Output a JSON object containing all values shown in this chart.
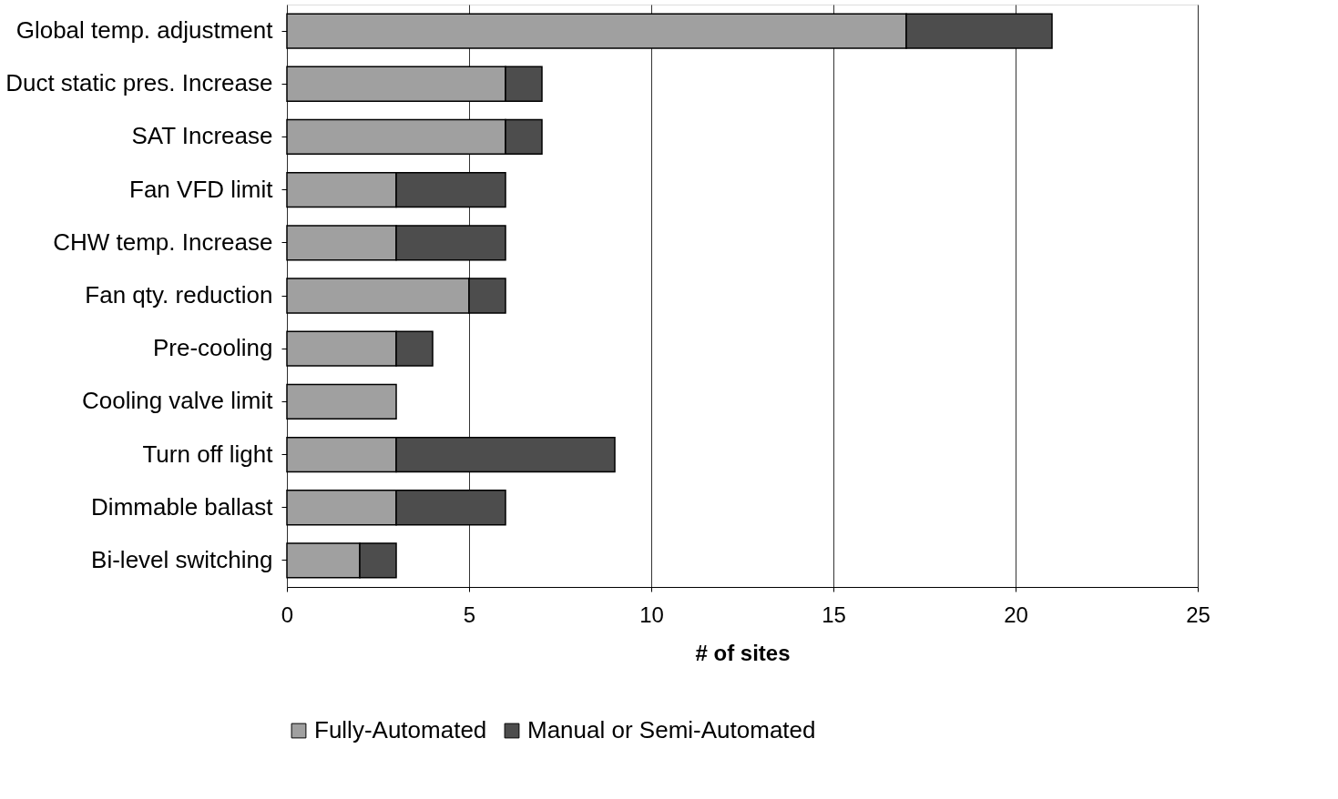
{
  "chart_data": {
    "type": "bar",
    "orientation": "horizontal",
    "stacked": true,
    "xlabel": "# of sites",
    "categories": [
      "Global temp. adjustment",
      "Duct static pres. Increase",
      "SAT Increase",
      "Fan VFD limit",
      "CHW temp. Increase",
      "Fan qty. reduction",
      "Pre-cooling",
      "Cooling valve limit",
      "Turn off light",
      "Dimmable ballast",
      "Bi-level switching"
    ],
    "series": [
      {
        "name": "Fully-Automated",
        "color": "#a0a0a0",
        "values": [
          17,
          6,
          6,
          3,
          3,
          5,
          3,
          3,
          3,
          3,
          2
        ]
      },
      {
        "name": "Manual or Semi-Automated",
        "color": "#4d4d4d",
        "values": [
          4,
          1,
          1,
          3,
          3,
          1,
          1,
          null,
          6,
          3,
          1
        ]
      }
    ],
    "xlim": [
      0,
      25
    ],
    "xticks": [
      0,
      5,
      10,
      15,
      20,
      25
    ],
    "grid": "x",
    "legend": "bottom"
  }
}
